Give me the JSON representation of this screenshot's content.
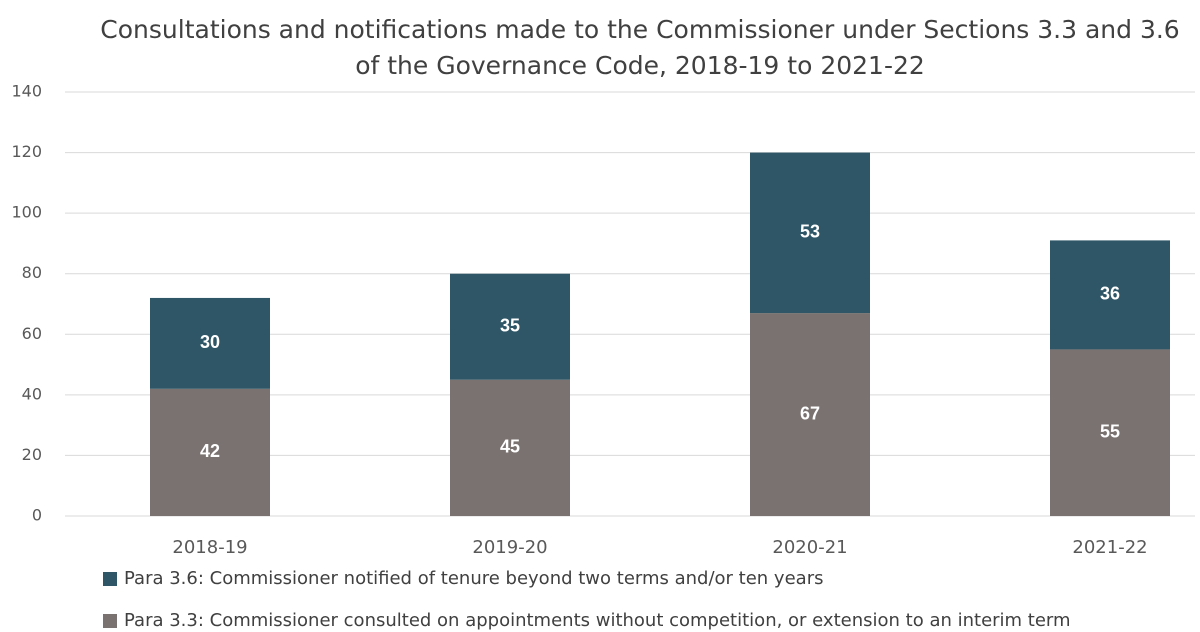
{
  "chart_data": {
    "type": "stacked_bar",
    "title": "Consultations and notifications made to the Commissioner under Sections 3.3 and 3.6 of the Governance Code, 2018-19 to 2021-22",
    "categories": [
      "2018-19",
      "2019-20",
      "2020-21",
      "2021-22"
    ],
    "series": [
      {
        "name": "Para 3.3: Commissioner consulted on appointments without competition, or extension to an interim term",
        "color": "#7a7270",
        "values": [
          42,
          45,
          67,
          55
        ]
      },
      {
        "name": "Para 3.6: Commissioner notified of tenure beyond two terms and/or ten years",
        "color": "#2e5667",
        "values": [
          30,
          35,
          53,
          36
        ]
      }
    ],
    "ylim": [
      0,
      140
    ],
    "yticks": [
      0,
      20,
      40,
      60,
      80,
      100,
      120,
      140
    ],
    "grid": true
  }
}
